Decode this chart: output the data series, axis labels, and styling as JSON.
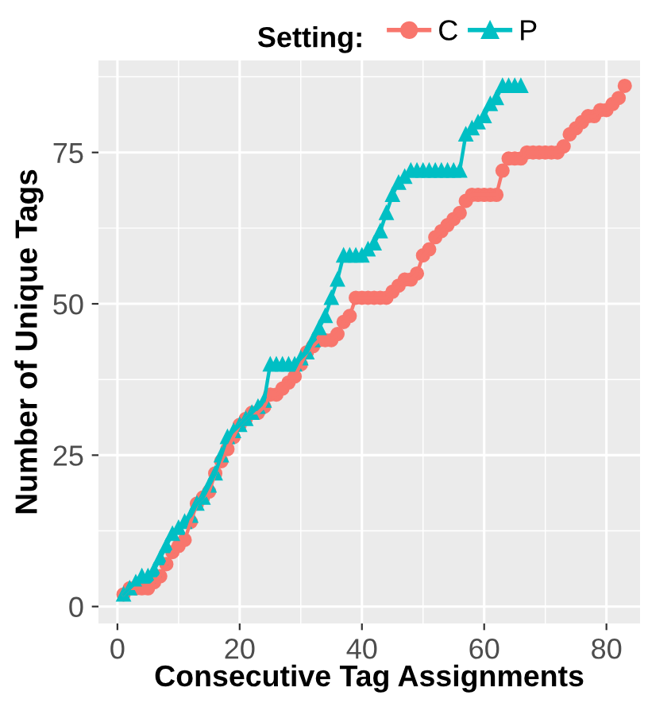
{
  "chart_data": {
    "type": "line",
    "xlabel": "Consecutive Tag Assignments",
    "ylabel": "Number of Unique Tags",
    "legend_title": "Setting:",
    "legend": "top",
    "grid": true,
    "xlim": [
      -3.1,
      85.5
    ],
    "ylim": [
      -2.8,
      90.2
    ],
    "xticks": [
      0,
      20,
      40,
      60,
      80
    ],
    "yticks": [
      0,
      25,
      50,
      75
    ],
    "series": [
      {
        "name": "C",
        "color": "#f8766d",
        "marker": "circle",
        "x": [
          1,
          2,
          3,
          4,
          5,
          6,
          7,
          8,
          9,
          10,
          11,
          12,
          13,
          14,
          15,
          16,
          17,
          18,
          19,
          20,
          21,
          22,
          23,
          24,
          25,
          26,
          27,
          28,
          29,
          30,
          31,
          32,
          33,
          34,
          35,
          36,
          37,
          38,
          39,
          40,
          41,
          42,
          43,
          44,
          45,
          46,
          47,
          48,
          49,
          50,
          51,
          52,
          53,
          54,
          55,
          56,
          57,
          58,
          59,
          60,
          61,
          62,
          63,
          64,
          65,
          66,
          67,
          68,
          69,
          70,
          71,
          72,
          73,
          74,
          75,
          76,
          77,
          78,
          79,
          80,
          81,
          82,
          83
        ],
        "values": [
          2,
          3,
          3,
          3,
          3,
          4,
          5,
          7,
          9,
          10,
          11,
          14,
          17,
          18,
          19,
          22,
          24,
          26,
          28,
          30,
          31,
          32,
          32,
          33,
          35,
          35,
          36,
          37,
          38,
          40,
          42,
          43,
          44,
          44,
          44,
          45,
          47,
          48,
          51,
          51,
          51,
          51,
          51,
          51,
          52,
          53,
          54,
          54,
          55,
          58,
          59,
          61,
          62,
          63,
          64,
          65,
          67,
          68,
          68,
          68,
          68,
          68,
          72,
          74,
          74,
          74,
          75,
          75,
          75,
          75,
          75,
          75,
          76,
          78,
          79,
          80,
          81,
          81,
          82,
          82,
          83,
          84,
          86
        ]
      },
      {
        "name": "P",
        "color": "#00bfc4",
        "marker": "triangle",
        "x": [
          1,
          2,
          3,
          4,
          5,
          6,
          7,
          8,
          9,
          10,
          11,
          12,
          13,
          14,
          15,
          16,
          17,
          18,
          19,
          20,
          21,
          22,
          23,
          24,
          25,
          26,
          27,
          28,
          29,
          30,
          31,
          32,
          33,
          34,
          35,
          36,
          37,
          38,
          39,
          40,
          41,
          42,
          43,
          44,
          45,
          46,
          47,
          48,
          49,
          50,
          51,
          52,
          53,
          54,
          55,
          56,
          57,
          58,
          59,
          60,
          61,
          62,
          63,
          64,
          65,
          66
        ],
        "values": [
          2,
          3,
          4,
          5,
          5,
          6,
          8,
          10,
          12,
          13,
          14,
          15,
          17,
          18,
          20,
          22,
          25,
          28,
          29,
          30,
          31,
          32,
          33,
          34,
          40,
          40,
          40,
          40,
          40,
          41,
          42,
          44,
          46,
          48,
          51,
          54,
          58,
          58,
          58,
          58,
          59,
          60,
          62,
          65,
          68,
          70,
          71,
          72,
          72,
          72,
          72,
          72,
          72,
          72,
          72,
          72,
          78,
          79,
          80,
          81,
          83,
          84,
          86,
          86,
          86,
          86
        ]
      }
    ]
  }
}
